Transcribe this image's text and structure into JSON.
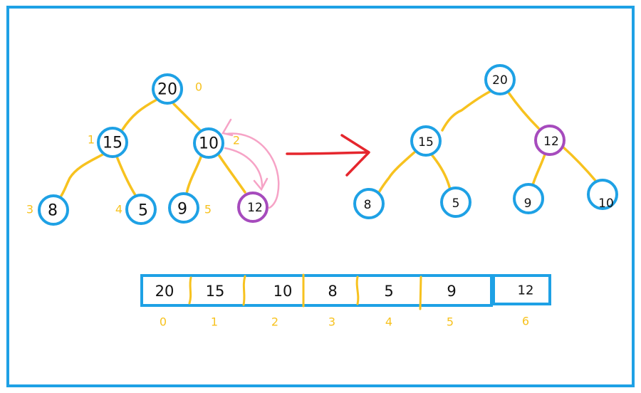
{
  "colors": {
    "frame": "#1ea1e5",
    "node_border": "#1ea1e5",
    "moved_node_border": "#a64bbd",
    "edge": "#f7c21f",
    "index_text": "#f7c21f",
    "swap_arrow": "#f6a3c6",
    "transition_arrow": "#e5262d"
  },
  "left_tree": {
    "nodes": [
      {
        "value": "20",
        "index": "0"
      },
      {
        "value": "15",
        "index": "1"
      },
      {
        "value": "10",
        "index": "2"
      },
      {
        "value": "8",
        "index": "3"
      },
      {
        "value": "5",
        "index": "4"
      },
      {
        "value": "9",
        "index": "5"
      },
      {
        "value": "12",
        "index": ""
      }
    ]
  },
  "right_tree": {
    "nodes": [
      {
        "value": "20"
      },
      {
        "value": "15"
      },
      {
        "value": "12"
      },
      {
        "value": "8"
      },
      {
        "value": "5"
      },
      {
        "value": "9"
      },
      {
        "value": "10"
      }
    ]
  },
  "array": {
    "cells": [
      {
        "value": "20",
        "index": "0"
      },
      {
        "value": "15",
        "index": "1"
      },
      {
        "value": "10",
        "index": "2"
      },
      {
        "value": "8",
        "index": "3"
      },
      {
        "value": "5",
        "index": "4"
      },
      {
        "value": "9",
        "index": "5"
      }
    ],
    "appended": {
      "value": "12",
      "index": "6"
    }
  }
}
